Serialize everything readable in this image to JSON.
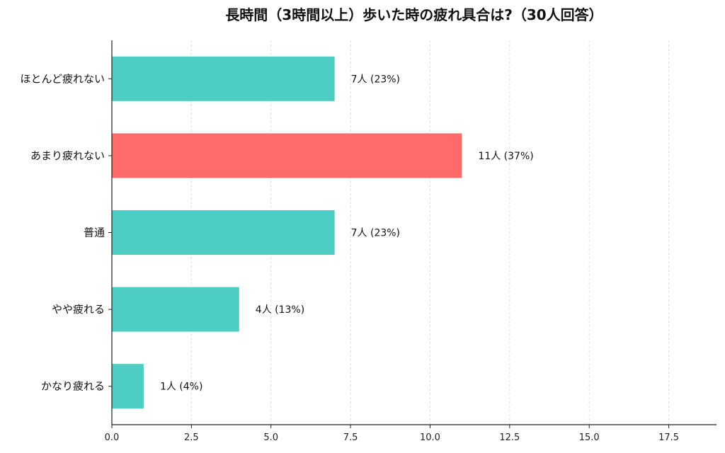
{
  "chart_data": {
    "type": "bar",
    "orientation": "horizontal",
    "title": "長時間（3時間以上）歩いた時の疲れ具合は?（30人回答）",
    "categories": [
      "ほとんど疲れない",
      "あまり疲れない",
      "普通",
      "やや疲れる",
      "かなり疲れる"
    ],
    "values": [
      7,
      11,
      7,
      4,
      1
    ],
    "data_labels": [
      "7人 (23%)",
      "11人 (37%)",
      "7人 (23%)",
      "4人 (13%)",
      "1人 (4%)"
    ],
    "colors": [
      "#4ecdc4",
      "#ff6b6b",
      "#4ecdc4",
      "#4ecdc4",
      "#4ecdc4"
    ],
    "xlim": [
      0,
      19
    ],
    "xticks": [
      0,
      2.5,
      5,
      7.5,
      10,
      12.5,
      15,
      17.5
    ],
    "xtick_labels": [
      "0.0",
      "2.5",
      "5.0",
      "7.5",
      "10.0",
      "12.5",
      "15.0",
      "17.5"
    ],
    "xlabel": "",
    "ylabel": "",
    "grid": "x-dashed",
    "legend": "none"
  }
}
